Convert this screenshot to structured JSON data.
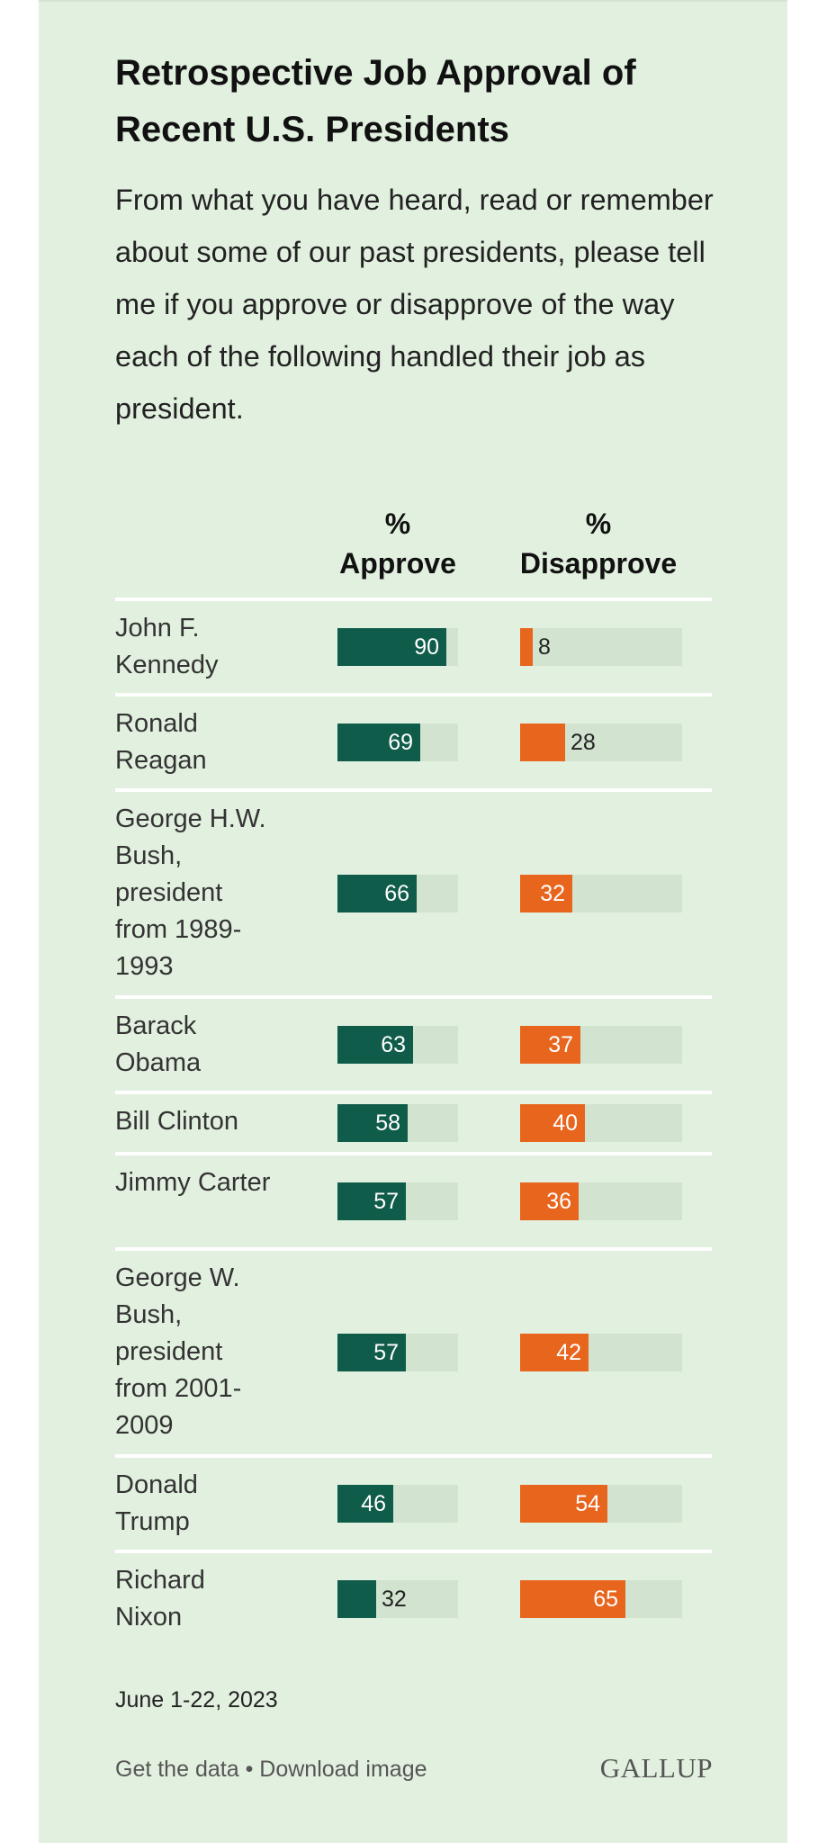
{
  "colors": {
    "background": "#e2f0df",
    "approve": "#105c4a",
    "disapprove": "#e8651d",
    "track": "#d2e4cf",
    "divider": "#ffffff"
  },
  "title": "Retrospective Job Approval of Recent U.S. Presidents",
  "subtitle": "From what you have heard, read or remember about some of our past presidents, please tell me if you approve or disapprove of the way each of the following handled their job as president.",
  "chart_data": {
    "type": "bar",
    "orientation": "horizontal",
    "xlim": [
      0,
      100
    ],
    "column_headers": [
      {
        "line1": "%",
        "line2": "Approve"
      },
      {
        "line1": "%",
        "line2": "Disapprove"
      }
    ],
    "categories": [
      "John F. Kennedy",
      "Ronald Reagan",
      "George H.W. Bush, president from 1989-1993",
      "Barack Obama",
      "Bill Clinton",
      "Jimmy Carter",
      "George W. Bush, president from 2001-2009",
      "Donald Trump",
      "Richard Nixon"
    ],
    "series": [
      {
        "values": [
          90,
          69,
          66,
          63,
          58,
          57,
          57,
          46,
          32
        ]
      },
      {
        "values": [
          8,
          28,
          32,
          37,
          40,
          36,
          42,
          54,
          65
        ]
      }
    ],
    "grid": false,
    "legend": "none"
  },
  "footnote": "June 1-22, 2023",
  "footer": {
    "get_data": "Get the data",
    "separator": "•",
    "download": "Download image",
    "logo": "GALLUP"
  }
}
